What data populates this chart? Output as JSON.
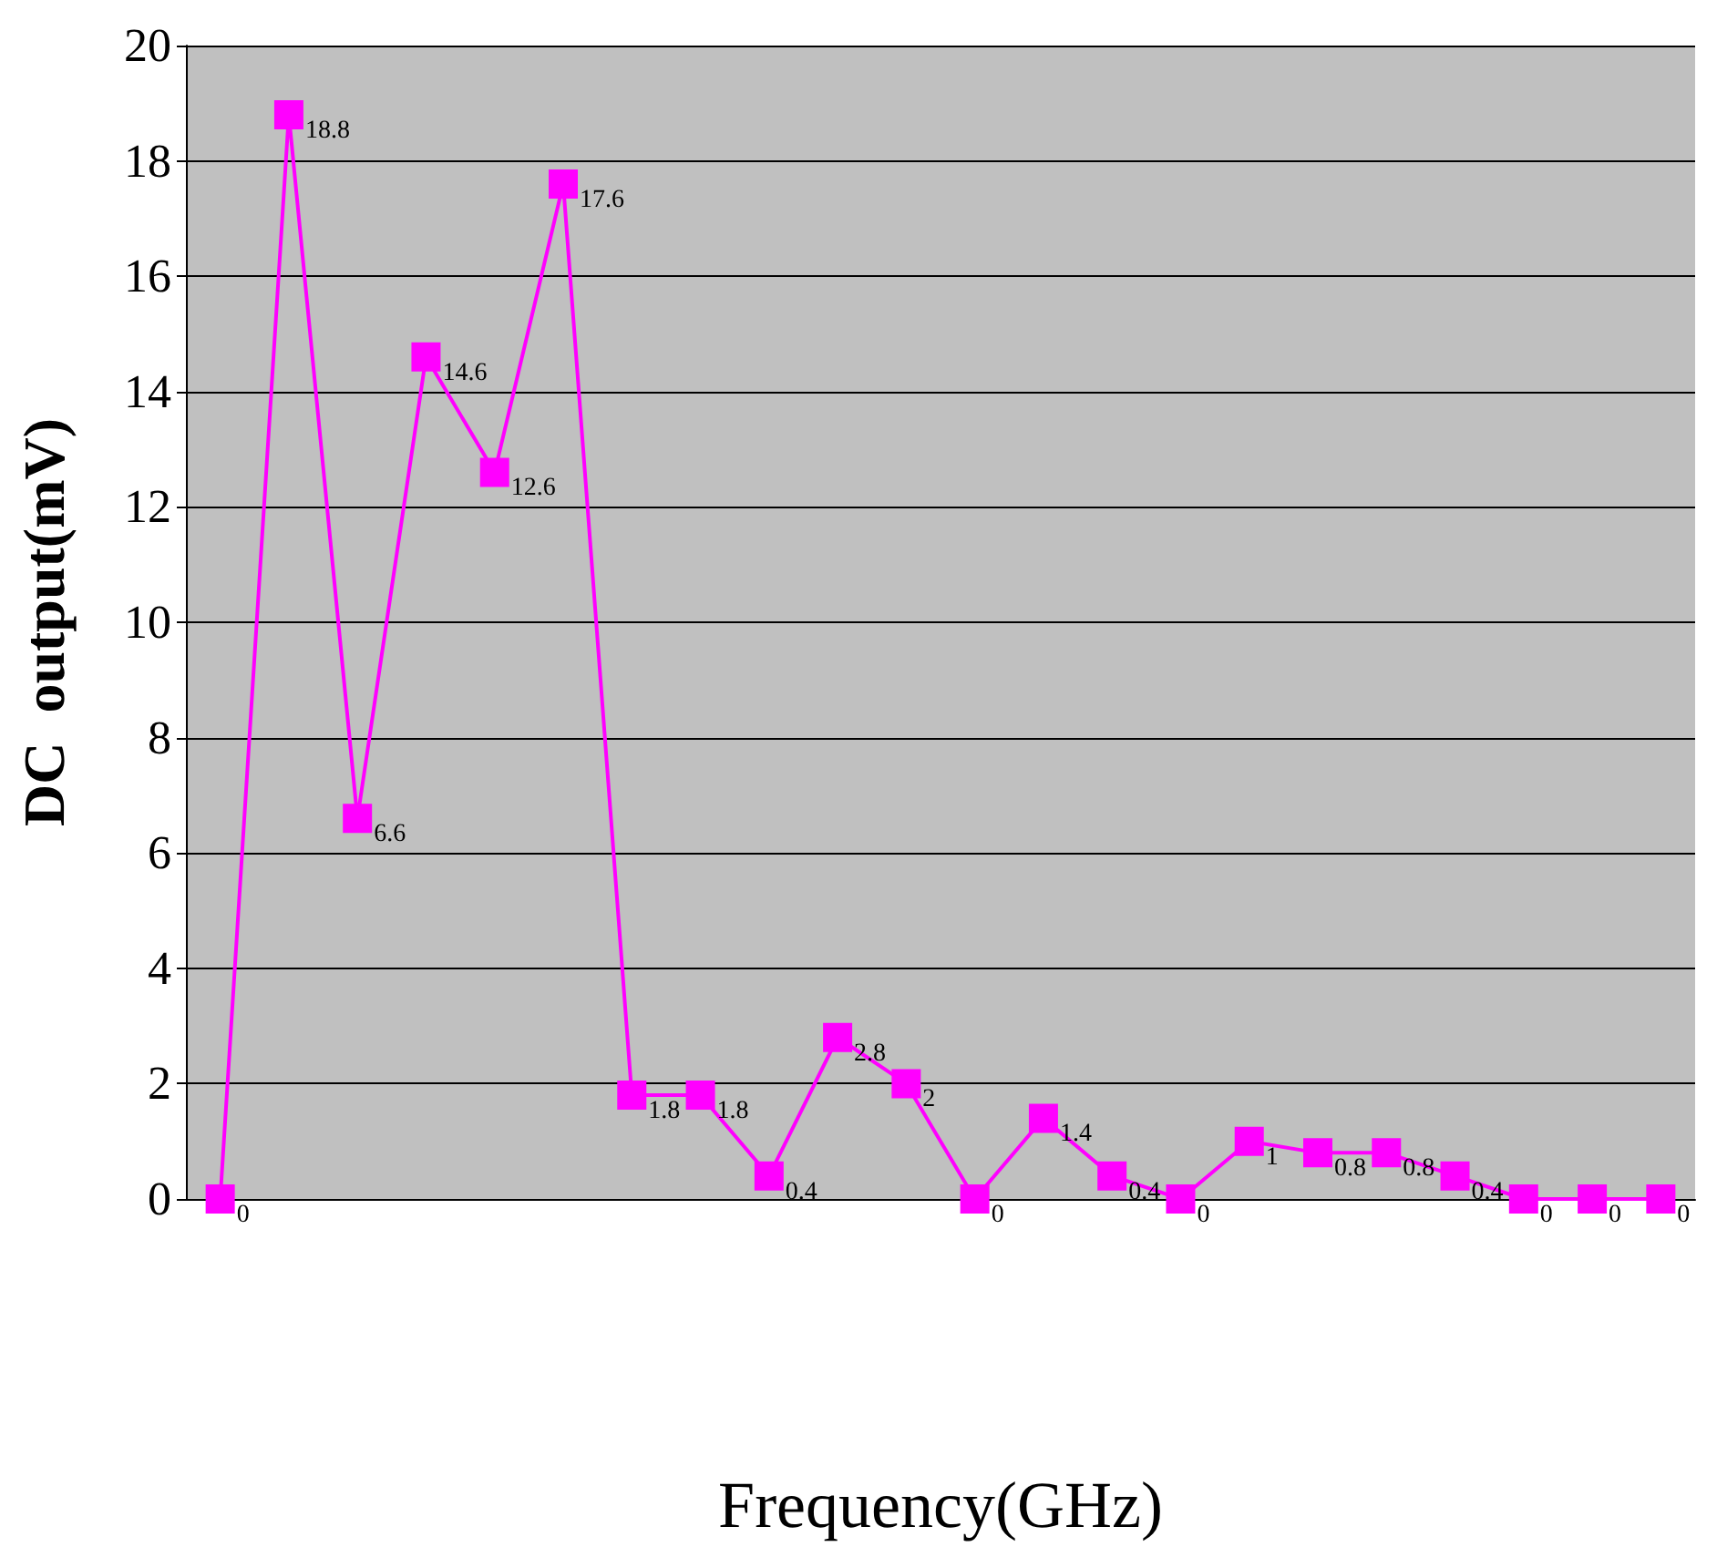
{
  "chart_data": {
    "type": "line",
    "xlabel": "Frequency(GHz)",
    "ylabel": "DC  output(mV)",
    "categories": [
      null,
      null,
      null,
      null,
      null,
      null,
      null,
      null,
      null,
      null,
      null,
      null,
      null,
      null,
      null,
      null,
      null,
      null,
      null,
      null,
      null,
      null
    ],
    "series": [
      {
        "color": "#ff00ff",
        "values": [
          0,
          18.8,
          6.6,
          14.6,
          12.6,
          17.6,
          1.8,
          1.8,
          0.4,
          2.8,
          2,
          0,
          1.4,
          0.4,
          0,
          1,
          0.8,
          0.8,
          0.4,
          0,
          0,
          0
        ]
      }
    ],
    "ylim": [
      0,
      20
    ],
    "yticks": [
      0,
      2,
      4,
      6,
      8,
      10,
      12,
      14,
      16,
      18,
      20
    ],
    "grid": "y",
    "marker": "square",
    "line_style": "solid",
    "data_labels": true
  }
}
